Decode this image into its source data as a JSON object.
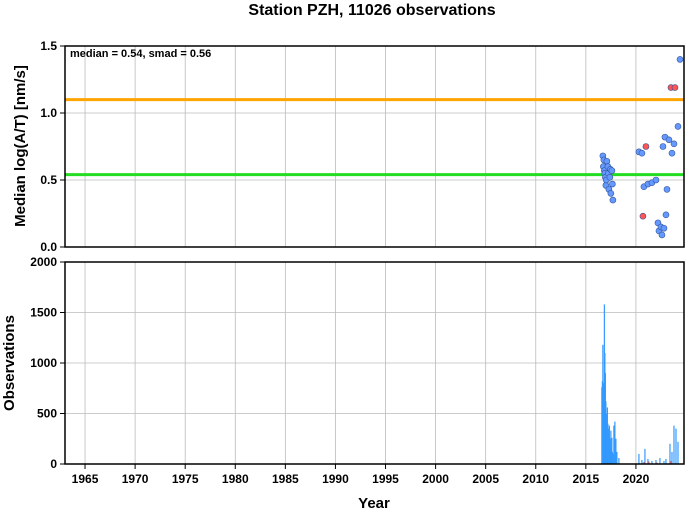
{
  "chart_data": [
    {
      "type": "scatter",
      "title": "Station PZH, 11026 observations",
      "annotation": "median = 0.54, smad = 0.56",
      "xlabel": "Year",
      "ylabel": "Median log(A/T) [nm/s]",
      "xlim": [
        1963,
        2024.8
      ],
      "ylim": [
        0,
        1.5
      ],
      "x_ticks": [
        1965,
        1970,
        1975,
        1980,
        1985,
        1990,
        1995,
        2000,
        2005,
        2010,
        2015,
        2020
      ],
      "y_ticks": [
        "0.0",
        "0.5",
        "1.0",
        "1.5"
      ],
      "grid": true,
      "reference_lines": [
        {
          "y": 1.1,
          "color": "#ffa500"
        },
        {
          "y": 0.54,
          "color": "#22dd22"
        }
      ],
      "series": [
        {
          "color": "#6699ff",
          "points": [
            [
              2016.7,
              0.68
            ],
            [
              2016.8,
              0.65
            ],
            [
              2016.75,
              0.6
            ],
            [
              2016.85,
              0.57
            ],
            [
              2016.9,
              0.55
            ],
            [
              2016.95,
              0.52
            ],
            [
              2017.0,
              0.46
            ],
            [
              2017.05,
              0.5
            ],
            [
              2017.1,
              0.64
            ],
            [
              2017.2,
              0.6
            ],
            [
              2017.25,
              0.55
            ],
            [
              2017.3,
              0.43
            ],
            [
              2017.4,
              0.52
            ],
            [
              2017.45,
              0.58
            ],
            [
              2017.5,
              0.4
            ],
            [
              2017.6,
              0.57
            ],
            [
              2017.65,
              0.47
            ],
            [
              2017.7,
              0.35
            ],
            [
              2020.3,
              0.71
            ],
            [
              2020.6,
              0.7
            ],
            [
              2020.8,
              0.45
            ],
            [
              2021.2,
              0.47
            ],
            [
              2021.6,
              0.48
            ],
            [
              2022.0,
              0.5
            ],
            [
              2022.2,
              0.18
            ],
            [
              2022.3,
              0.12
            ],
            [
              2022.5,
              0.15
            ],
            [
              2022.6,
              0.09
            ],
            [
              2022.7,
              0.75
            ],
            [
              2022.8,
              0.14
            ],
            [
              2022.9,
              0.82
            ],
            [
              2023.0,
              0.24
            ],
            [
              2023.1,
              0.43
            ],
            [
              2023.3,
              0.8
            ],
            [
              2023.6,
              0.7
            ],
            [
              2023.8,
              0.77
            ],
            [
              2024.2,
              0.9
            ],
            [
              2024.4,
              1.4
            ]
          ]
        },
        {
          "color": "#ff5555",
          "points": [
            [
              2020.7,
              0.23
            ],
            [
              2021.0,
              0.75
            ],
            [
              2023.5,
              1.19
            ],
            [
              2023.9,
              1.19
            ]
          ]
        }
      ]
    },
    {
      "type": "bar",
      "xlabel": "Year",
      "ylabel": "Observations",
      "xlim": [
        1963,
        2024.8
      ],
      "ylim": [
        0,
        2000
      ],
      "x_ticks": [
        1965,
        1970,
        1975,
        1980,
        1985,
        1990,
        1995,
        2000,
        2005,
        2010,
        2015,
        2020
      ],
      "y_ticks": [
        0,
        500,
        1000,
        1500,
        2000
      ],
      "grid": true,
      "color": "#3399ff",
      "bars": [
        [
          2016.6,
          760
        ],
        [
          2016.65,
          820
        ],
        [
          2016.7,
          1180
        ],
        [
          2016.75,
          800
        ],
        [
          2016.8,
          600
        ],
        [
          2016.85,
          1580
        ],
        [
          2016.9,
          1100
        ],
        [
          2016.95,
          900
        ],
        [
          2017.0,
          620
        ],
        [
          2017.05,
          500
        ],
        [
          2017.1,
          450
        ],
        [
          2017.15,
          560
        ],
        [
          2017.2,
          400
        ],
        [
          2017.25,
          350
        ],
        [
          2017.3,
          300
        ],
        [
          2017.35,
          380
        ],
        [
          2017.4,
          250
        ],
        [
          2017.45,
          200
        ],
        [
          2017.5,
          330
        ],
        [
          2017.55,
          150
        ],
        [
          2017.6,
          260
        ],
        [
          2017.65,
          120
        ],
        [
          2017.7,
          100
        ],
        [
          2017.8,
          380
        ],
        [
          2017.9,
          420
        ],
        [
          2018.0,
          250
        ],
        [
          2018.1,
          120
        ],
        [
          2018.3,
          60
        ],
        [
          2020.3,
          100
        ],
        [
          2020.6,
          40
        ],
        [
          2020.9,
          150
        ],
        [
          2021.2,
          50
        ],
        [
          2021.6,
          30
        ],
        [
          2022.0,
          40
        ],
        [
          2022.4,
          60
        ],
        [
          2022.8,
          30
        ],
        [
          2023.0,
          50
        ],
        [
          2023.4,
          200
        ],
        [
          2023.6,
          120
        ],
        [
          2023.8,
          380
        ],
        [
          2024.0,
          350
        ],
        [
          2024.2,
          220
        ]
      ],
      "minor_bars_color": "#ff5555",
      "minor_bars": [
        [
          2020.8,
          20
        ],
        [
          2021.3,
          25
        ],
        [
          2022.1,
          15
        ],
        [
          2023.5,
          30
        ]
      ]
    }
  ]
}
